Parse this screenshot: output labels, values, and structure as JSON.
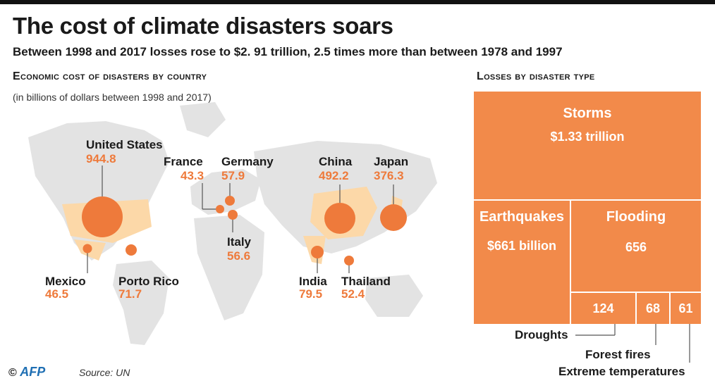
{
  "header": {
    "title": "The cost of climate disasters soars",
    "subtitle": "Between 1998 and 2017 losses rose to $2. 91 trillion, 2.5 times more than between 1978 and 1997"
  },
  "map_section": {
    "title": "Economic cost of disasters by country",
    "note": "(in billions of dollars between 1998 and 2017)",
    "countries": [
      {
        "name": "United States",
        "value": "944.8"
      },
      {
        "name": "France",
        "value": "43.3"
      },
      {
        "name": "Germany",
        "value": "57.9"
      },
      {
        "name": "China",
        "value": "492.2"
      },
      {
        "name": "Japan",
        "value": "376.3"
      },
      {
        "name": "Italy",
        "value": "56.6"
      },
      {
        "name": "Mexico",
        "value": "46.5"
      },
      {
        "name": "Porto Rico",
        "value": "71.7"
      },
      {
        "name": "India",
        "value": "79.5"
      },
      {
        "name": "Thailand",
        "value": "52.4"
      }
    ]
  },
  "treemap_section": {
    "title": "Losses by disaster type",
    "tiles": [
      {
        "name": "Storms",
        "value": "$1.33 trillion"
      },
      {
        "name": "Earthquakes",
        "value": "$661 billion"
      },
      {
        "name": "Flooding",
        "value": "656"
      },
      {
        "name": "Droughts",
        "value": "124"
      },
      {
        "name": "Forest fires",
        "value": "68"
      },
      {
        "name": "Extreme temperatures",
        "value": "61"
      }
    ]
  },
  "footer": {
    "copyright": "©",
    "brand": "AFP",
    "source": "Source: UN"
  },
  "colors": {
    "accent": "#ee7a3b",
    "tile": "#f28a4a",
    "highlight_country": "#fcd8a8",
    "land": "#e3e3e3"
  }
}
